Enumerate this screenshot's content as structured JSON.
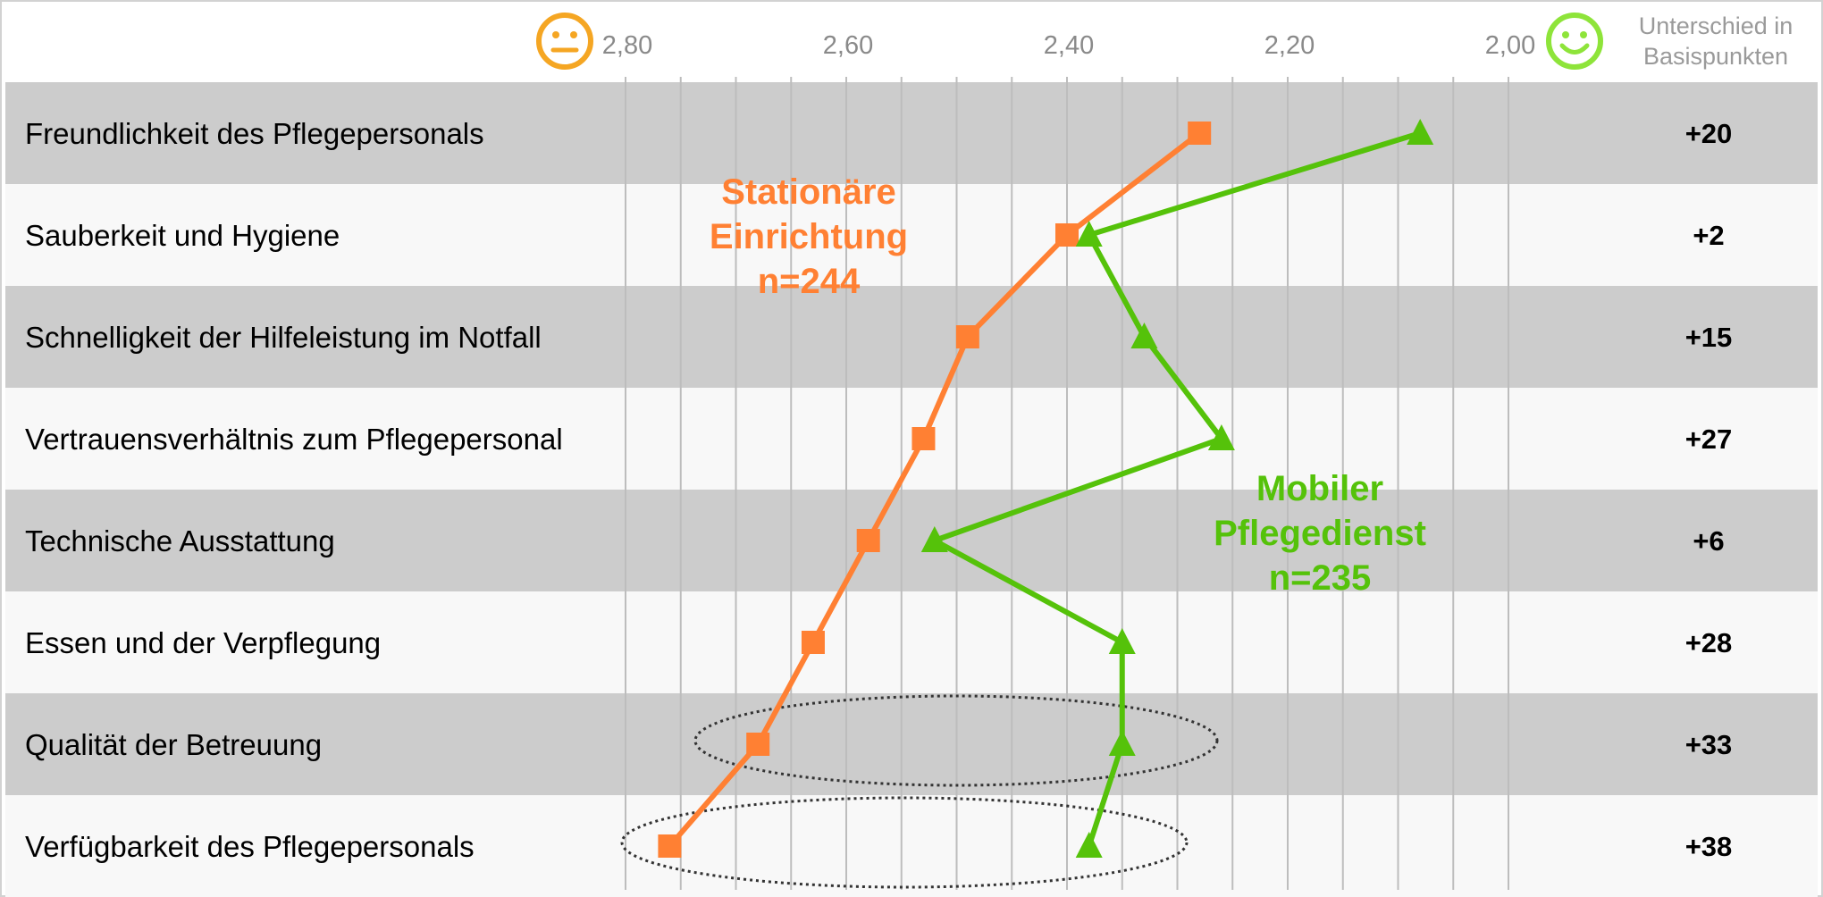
{
  "chart_data": {
    "type": "line",
    "orientation": "horizontal-categories",
    "x_axis": {
      "reversed": true,
      "range": [
        2.8,
        2.0
      ],
      "ticks": [
        2.8,
        2.6,
        2.4,
        2.2,
        2.0
      ],
      "tick_labels": [
        "2,80",
        "2,60",
        "2,40",
        "2,20",
        "2,00"
      ],
      "left_icon": "neutral-face-icon",
      "right_icon": "smiley-face-icon"
    },
    "grid": true,
    "categories": [
      "Freundlichkeit des Pflegepersonals",
      "Sauberkeit und Hygiene",
      "Schnelligkeit der Hilfeleistung im Notfall",
      "Vertrauensverhältnis zum Pflegepersonal",
      "Technische Ausstattung",
      "Essen und der Verpflegung",
      "Qualität der Betreuung",
      "Verfügbarkeit des Pflegepersonals"
    ],
    "series": [
      {
        "label_lines": [
          "Stationäre",
          "Einrichtung",
          "n=244"
        ],
        "color": "#ff8033",
        "marker": "square",
        "values": [
          2.28,
          2.4,
          2.49,
          2.53,
          2.58,
          2.63,
          2.68,
          2.76
        ]
      },
      {
        "label_lines": [
          "Mobiler",
          "Pflegedienst",
          "n=235"
        ],
        "color": "#55c20a",
        "marker": "triangle",
        "values": [
          2.08,
          2.38,
          2.33,
          2.26,
          2.52,
          2.35,
          2.35,
          2.38
        ]
      }
    ],
    "difference_column": {
      "header": [
        "Unterschied in",
        "Basispunkten"
      ],
      "values": [
        "+20",
        "+2",
        "+15",
        "+27",
        "+6",
        "+28",
        "+33",
        "+38"
      ]
    },
    "highlighted_categories": [
      "Qualität der Betreuung",
      "Verfügbarkeit des Pflegepersonals"
    ],
    "colors": {
      "row_shaded": "#cccccc",
      "row_plain": "#f8f8f8",
      "grid_line": "#bdbdbd",
      "neutral_face": "#f5a623",
      "smiley_face": "#8ee43a"
    }
  }
}
